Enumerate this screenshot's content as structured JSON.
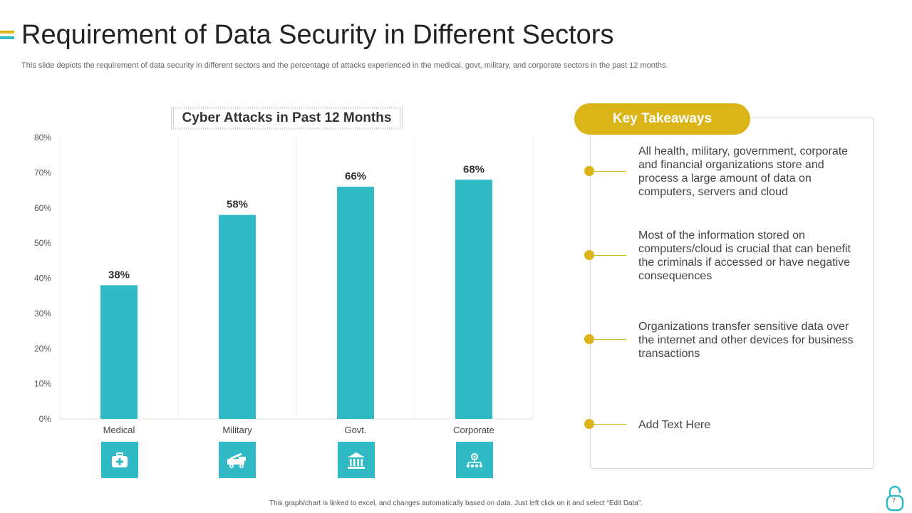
{
  "header": {
    "title": "Requirement of Data Security in Different Sectors",
    "subtitle": "This slide depicts the requirement of data security in different sectors and the percentage of attacks experienced in the medical, govt, military, and corporate sectors in the past 12 months."
  },
  "colors": {
    "bar": "#2fbac5",
    "accent_yellow": "#dbb417",
    "accent_teal": "#2fbac5"
  },
  "chart_data": {
    "type": "bar",
    "title": "Cyber Attacks in Past 12 Months",
    "categories": [
      "Medical",
      "Military",
      "Govt.",
      "Corporate"
    ],
    "values": [
      38,
      58,
      66,
      68
    ],
    "value_labels": [
      "38%",
      "58%",
      "66%",
      "68%"
    ],
    "ylim": [
      0,
      80
    ],
    "yticks": [
      "0%",
      "10%",
      "20%",
      "30%",
      "40%",
      "50%",
      "60%",
      "70%",
      "80%"
    ],
    "xlabel": "",
    "ylabel": "",
    "grid": "vertical",
    "category_icons": [
      "medical-kit-icon",
      "military-vehicle-icon",
      "government-building-icon",
      "corporate-network-icon"
    ]
  },
  "takeaways": {
    "title": "Key Takeaways",
    "items": [
      "All health, military, government, corporate and financial organizations store and process a large amount of data on computers, servers and cloud",
      "Most of the information stored on computers/cloud is crucial that can benefit the criminals if accessed or have negative consequences",
      "Organizations transfer sensitive data over the internet and other devices for business transactions",
      "Add Text Here"
    ]
  },
  "footer": {
    "note": "This graph/chart is linked to excel, and changes automatically based on data. Just left click on it and select “Edit Data”.",
    "page_number": "7",
    "logo_icon": "padlock-icon"
  }
}
